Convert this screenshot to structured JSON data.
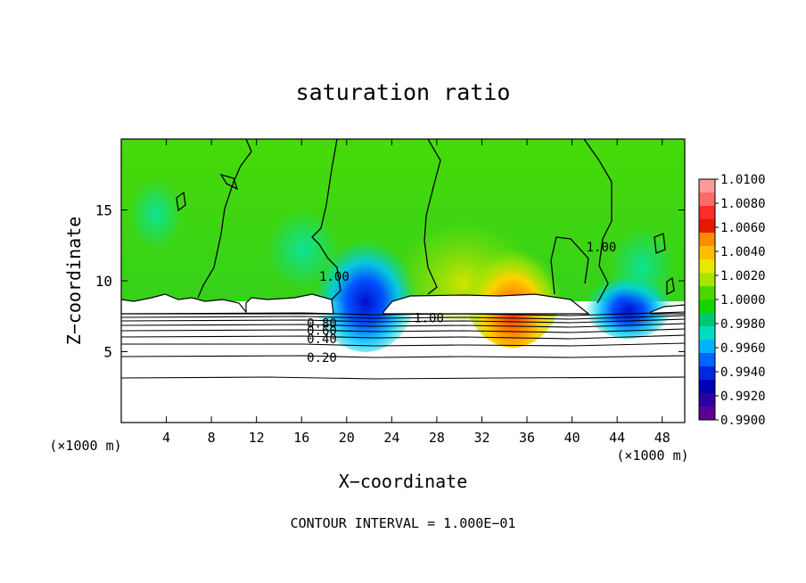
{
  "chart_data": {
    "type": "heatmap",
    "title": "saturation ratio",
    "xlabel": "X−coordinate",
    "ylabel": "Z−coordinate",
    "x_unit_left": "(×1000 m)",
    "x_unit_right": "(×1000 m)",
    "footer": "CONTOUR INTERVAL = 1.000E−01",
    "xlim": [
      0,
      50
    ],
    "ylim": [
      0,
      20
    ],
    "x_ticks": [
      4,
      8,
      12,
      16,
      20,
      24,
      28,
      32,
      36,
      40,
      44,
      48
    ],
    "x_tick_labels": [
      "4",
      "8",
      "12",
      "16",
      "20",
      "24",
      "28",
      "32",
      "36",
      "40",
      "44",
      "48"
    ],
    "y_ticks": [
      5,
      10,
      15
    ],
    "y_tick_labels": [
      "5",
      "10",
      "15"
    ],
    "colorbar": {
      "min": 0.99,
      "max": 1.01,
      "labels": [
        "1.0100",
        "1.0080",
        "1.0060",
        "1.0040",
        "1.0020",
        "1.0000",
        "0.9980",
        "0.9960",
        "0.9940",
        "0.9920",
        "0.9900"
      ],
      "colors": [
        "#ff9a9a",
        "#ff6a6a",
        "#ff2a2a",
        "#e41a00",
        "#ff8c00",
        "#ffbe00",
        "#e8e800",
        "#a6e600",
        "#4ad800",
        "#14d400",
        "#00c870",
        "#00dcc0",
        "#00b4ff",
        "#0064ff",
        "#0028e0",
        "#0000b4",
        "#2a00a0",
        "#5a0096"
      ]
    },
    "contour_labels": [
      {
        "text": "1.00",
        "x": 18.9,
        "z": 10.3
      },
      {
        "text": "1.00",
        "x": 27.3,
        "z": 7.4
      },
      {
        "text": "1.00",
        "x": 42.6,
        "z": 12.4
      },
      {
        "text": "0.80",
        "x": 17.8,
        "z": 7.0
      },
      {
        "text": "0.60",
        "x": 17.8,
        "z": 6.5
      },
      {
        "text": "0.40",
        "x": 17.8,
        "z": 5.9
      },
      {
        "text": "0.20",
        "x": 17.8,
        "z": 4.6
      }
    ],
    "contour_levels": [
      0.2,
      0.4,
      0.6,
      0.8,
      1.0
    ]
  }
}
